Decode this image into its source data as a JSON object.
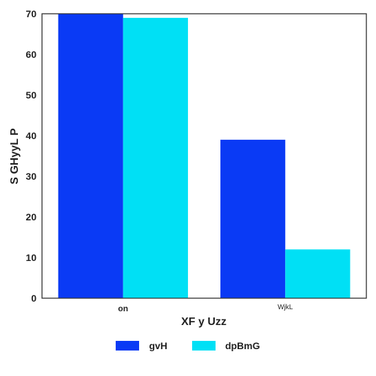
{
  "chart_data": {
    "type": "bar",
    "categories": [
      "on",
      "WjkL"
    ],
    "series": [
      {
        "name": "gvH",
        "values": [
          70,
          39
        ],
        "color": "#0a3af5"
      },
      {
        "name": "dpBmG",
        "values": [
          69,
          12
        ],
        "color": "#00e0f5"
      }
    ],
    "xlabel": "XF y Uzz",
    "ylabel": "S GHyyL  P",
    "ylim": [
      0,
      70
    ],
    "yticks": [
      0,
      10,
      20,
      30,
      40,
      50,
      60,
      70
    ],
    "grid": false,
    "legend_position": "bottom-center"
  }
}
